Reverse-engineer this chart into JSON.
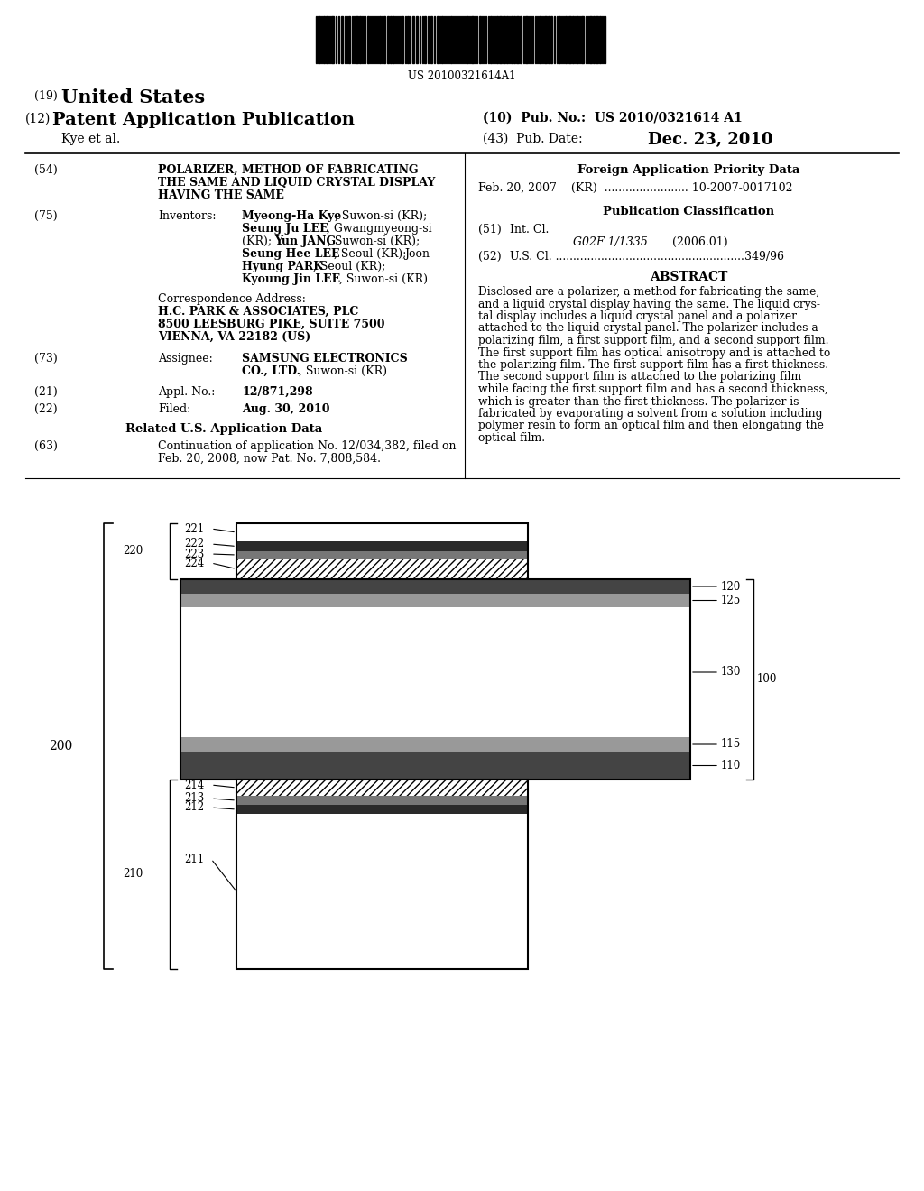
{
  "background_color": "#ffffff",
  "barcode_text": "US 20100321614A1",
  "patent_number": "US 2010/0321614 A1",
  "pub_date": "Dec. 23, 2010",
  "title": "POLARIZER, METHOD OF FABRICATING THE SAME AND LIQUID CRYSTAL DISPLAY HAVING THE SAME",
  "inventors_label": "Inventors:",
  "inventors_text": "Myeong-Ha Kye, Suwon-si (KR); Seung Ju LEE, Gwangmyeong-si (KR); Yun JANG, Suwon-si (KR); Seung Hee LEE, Seoul (KR); Joon Hyung PARK, Seoul (KR); Kyoung Jin LEE, Suwon-si (KR)",
  "correspondence_title": "Correspondence Address:",
  "correspondence_body": "H.C. PARK & ASSOCIATES, PLC\n8500 LEESBURG PIKE, SUITE 7500\nVIENNA, VA 22182 (US)",
  "assignee_label": "Assignee:",
  "assignee_text": "SAMSUNG ELECTRONICS CO., LTD., Suwon-si (KR)",
  "appl_no": "12/871,298",
  "filed": "Aug. 30, 2010",
  "foreign_priority_title": "Foreign Application Priority Data",
  "foreign_priority": "Feb. 20, 2007    (KR)  ........................ 10-2007-0017102",
  "pub_class_title": "Publication Classification",
  "int_cl_label": "Int. Cl.",
  "int_cl_value": "G02F 1/1335",
  "int_cl_year": "(2006.01)",
  "us_cl_label": "U.S. Cl.",
  "us_cl_value": "349/96",
  "abstract_title": "ABSTRACT",
  "abstract_text": "Disclosed are a polarizer, a method for fabricating the same, and a liquid crystal display having the same. The liquid crys-tal display includes a liquid crystal panel and a polarizer attached to the liquid crystal panel. The polarizer includes a polarizing film, a first support film, and a second support film. The first support film has optical anisotropy and is attached to the polarizing film. The first support film has a first thickness. The second support film is attached to the polarizing film while facing the first support film and has a second thickness, which is greater than the first thickness. The polarizer is fabricated by evaporating a solvent from a solution including polymer resin to form an optical film and then elongating the optical film.",
  "related_app_data": "Related U.S. Application Data",
  "continuation_text": "Continuation of application No. 12/034,382, filed on Feb. 20, 2008, now Pat. No. 7,808,584."
}
